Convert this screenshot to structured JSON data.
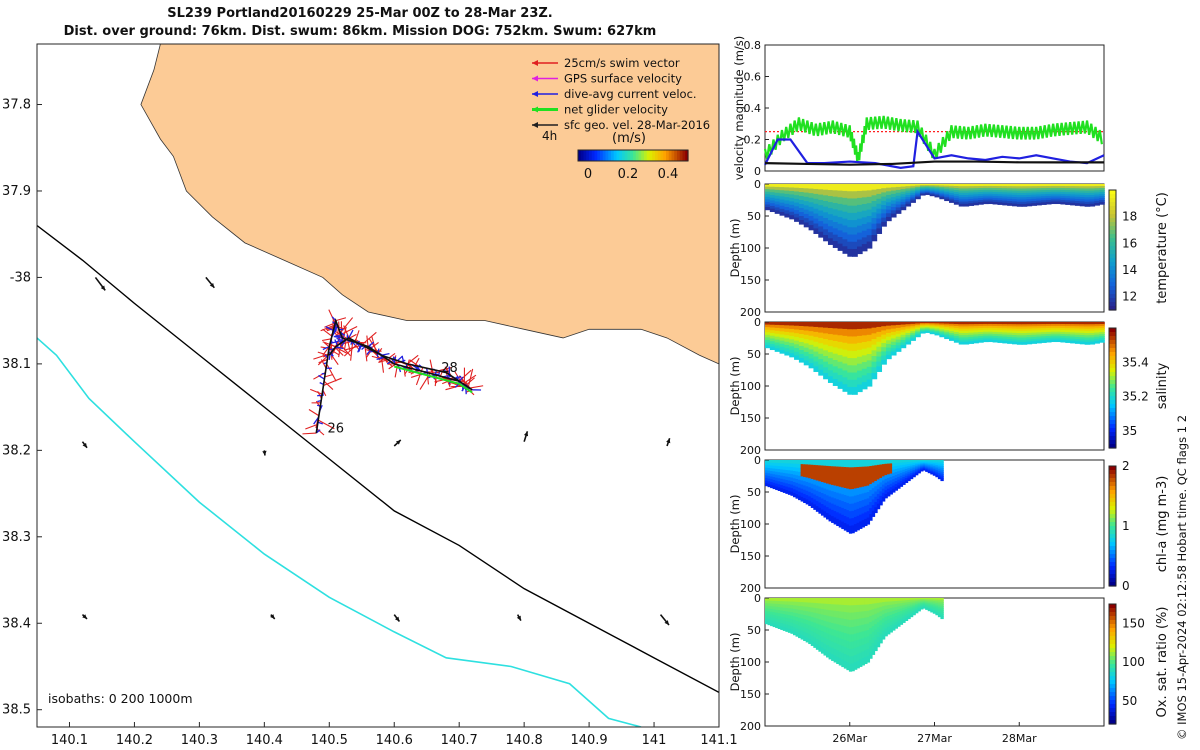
{
  "title": {
    "line1": "SL239 Portland20160229 25-Mar 00Z to 28-Mar 23Z.",
    "line2": "Dist. over ground: 76km. Dist. swum: 86km. Mission DOG: 752km. Swum: 627km"
  },
  "chart_data": [
    {
      "type": "scatter",
      "panel": "map",
      "xlim": [
        140.05,
        141.1
      ],
      "ylim": [
        -38.52,
        -37.73
      ],
      "x_ticks": [
        140.1,
        140.2,
        140.3,
        140.4,
        140.5,
        140.6,
        140.7,
        140.8,
        140.9,
        141,
        141.1
      ],
      "x_tick_labels": [
        "140.1",
        "140.2",
        "140.3",
        "140.4",
        "140.5",
        "140.6",
        "140.7",
        "140.8",
        "140.9",
        "141",
        "141.1"
      ],
      "y_ticks": [
        -37.8,
        -37.9,
        -38.0,
        -38.1,
        -38.2,
        -38.3,
        -38.4,
        -38.5
      ],
      "y_tick_labels": [
        "37.8",
        "37.9",
        "-38",
        "38.1",
        "38.2",
        "38.3",
        "38.4",
        "38.5"
      ],
      "land_color": "#fccb96",
      "coast_lon_lat": [
        [
          140.24,
          -37.73
        ],
        [
          140.23,
          -37.76
        ],
        [
          140.21,
          -37.8
        ],
        [
          140.24,
          -37.84
        ],
        [
          140.26,
          -37.86
        ],
        [
          140.28,
          -37.9
        ],
        [
          140.32,
          -37.93
        ],
        [
          140.37,
          -37.96
        ],
        [
          140.43,
          -37.98
        ],
        [
          140.49,
          -38.0
        ],
        [
          140.52,
          -38.02
        ],
        [
          140.56,
          -38.04
        ],
        [
          140.62,
          -38.05
        ],
        [
          140.68,
          -38.05
        ],
        [
          140.74,
          -38.05
        ],
        [
          140.8,
          -38.06
        ],
        [
          140.86,
          -38.07
        ],
        [
          140.9,
          -38.06
        ],
        [
          140.94,
          -38.06
        ],
        [
          140.98,
          -38.06
        ],
        [
          141.02,
          -38.07
        ],
        [
          141.07,
          -38.09
        ],
        [
          141.1,
          -38.1
        ],
        [
          141.1,
          -37.73
        ]
      ],
      "isobath_200m": [
        [
          140.05,
          -37.94
        ],
        [
          140.12,
          -37.98
        ],
        [
          140.2,
          -38.03
        ],
        [
          140.3,
          -38.09
        ],
        [
          140.4,
          -38.15
        ],
        [
          140.5,
          -38.21
        ],
        [
          140.6,
          -38.27
        ],
        [
          140.7,
          -38.31
        ],
        [
          140.8,
          -38.36
        ],
        [
          140.9,
          -38.4
        ],
        [
          141.0,
          -38.44
        ],
        [
          141.1,
          -38.48
        ]
      ],
      "isobath_1000m": [
        [
          140.05,
          -38.07
        ],
        [
          140.08,
          -38.09
        ],
        [
          140.13,
          -38.14
        ],
        [
          140.2,
          -38.19
        ],
        [
          140.3,
          -38.26
        ],
        [
          140.4,
          -38.32
        ],
        [
          140.5,
          -38.37
        ],
        [
          140.6,
          -38.41
        ],
        [
          140.68,
          -38.44
        ],
        [
          140.78,
          -38.45
        ],
        [
          140.87,
          -38.47
        ],
        [
          140.93,
          -38.51
        ],
        [
          140.98,
          -38.52
        ]
      ],
      "isobath_colors": {
        "200m": "#000000",
        "1000m": "#2ee0e0"
      },
      "glider_track": [
        [
          140.48,
          -38.18
        ],
        [
          140.49,
          -38.13
        ],
        [
          140.5,
          -38.08
        ],
        [
          140.51,
          -38.05
        ],
        [
          140.52,
          -38.07
        ],
        [
          140.56,
          -38.08
        ],
        [
          140.6,
          -38.1
        ],
        [
          140.65,
          -38.11
        ],
        [
          140.7,
          -38.12
        ],
        [
          140.72,
          -38.13
        ],
        [
          140.68,
          -38.11
        ],
        [
          140.62,
          -38.1
        ],
        [
          140.58,
          -38.09
        ],
        [
          140.53,
          -38.07
        ],
        [
          140.51,
          -38.08
        ],
        [
          140.5,
          -38.09
        ]
      ],
      "day_labels": [
        {
          "text": "26",
          "lon": 140.485,
          "lat": -38.175
        },
        {
          "text": "28",
          "lon": 140.66,
          "lat": -38.105
        }
      ],
      "surface_geo_vectors": [
        [
          140.14,
          -38.0,
          0.015,
          -0.015
        ],
        [
          140.31,
          -38.0,
          0.013,
          -0.012
        ],
        [
          140.12,
          -38.19,
          0.007,
          -0.007
        ],
        [
          140.4,
          -38.2,
          0.001,
          -0.006
        ],
        [
          140.6,
          -38.195,
          0.01,
          0.007
        ],
        [
          140.8,
          -38.19,
          0.005,
          0.012
        ],
        [
          141.02,
          -38.195,
          0.004,
          0.009
        ],
        [
          140.12,
          -38.39,
          0.007,
          -0.005
        ],
        [
          140.41,
          -38.39,
          0.006,
          -0.005
        ],
        [
          140.6,
          -38.39,
          0.008,
          -0.008
        ],
        [
          140.79,
          -38.39,
          0.005,
          -0.007
        ],
        [
          141.01,
          -38.39,
          0.013,
          -0.012
        ]
      ],
      "legend": [
        {
          "label": "25cm/s swim vector",
          "color": "#e02020"
        },
        {
          "label": "GPS surface velocity",
          "color": "#e020e0"
        },
        {
          "label": "dive-avg current veloc.",
          "color": "#2020e0"
        },
        {
          "label": "net glider velocity",
          "color": "#20e020"
        },
        {
          "label": "sfc geo. vel. 28-Mar-2016",
          "color": "#202020"
        }
      ],
      "scale_note": "4h",
      "colorbar": {
        "title": "(m/s)",
        "ticks": [
          0,
          0.2,
          0.4
        ],
        "tick_labels": [
          "0",
          "0.2",
          "0.4"
        ],
        "range": [
          -0.05,
          0.5
        ]
      },
      "isobath_note": "isobaths: 0   200  1000m"
    },
    {
      "type": "line",
      "panel": "velocity",
      "ylabel": "velocity magnitude (m/s)",
      "ylim": [
        0,
        0.8
      ],
      "y_ticks": [
        0,
        0.2,
        0.4,
        0.6,
        0.8
      ],
      "y_tick_labels": [
        "0",
        "0.2",
        "0.4",
        "0.6",
        "0.8"
      ],
      "x_range_days": [
        25.0,
        29.0
      ],
      "series": [
        {
          "color": "#20e020",
          "x": [
            25.0,
            25.2,
            25.4,
            25.6,
            25.8,
            26.0,
            26.1,
            26.2,
            26.4,
            26.6,
            26.8,
            27.0,
            27.2,
            27.4,
            27.6,
            27.8,
            28.0,
            28.2,
            28.4,
            28.6,
            28.8,
            29.0
          ],
          "values": [
            0.1,
            0.22,
            0.3,
            0.26,
            0.28,
            0.25,
            0.08,
            0.3,
            0.31,
            0.29,
            0.28,
            0.1,
            0.25,
            0.24,
            0.26,
            0.25,
            0.24,
            0.24,
            0.26,
            0.27,
            0.28,
            0.2
          ]
        },
        {
          "color": "#2020e0",
          "x": [
            25.0,
            25.15,
            25.3,
            25.5,
            25.7,
            26.0,
            26.3,
            26.6,
            26.75,
            26.8,
            27.0,
            27.2,
            27.4,
            27.6,
            27.8,
            28.0,
            28.2,
            28.4,
            28.6,
            28.8,
            29.0
          ],
          "values": [
            0.04,
            0.2,
            0.2,
            0.05,
            0.05,
            0.06,
            0.05,
            0.02,
            0.03,
            0.25,
            0.08,
            0.1,
            0.08,
            0.07,
            0.09,
            0.08,
            0.1,
            0.08,
            0.06,
            0.05,
            0.1
          ]
        },
        {
          "color": "#111111",
          "x": [
            25.0,
            25.5,
            26.0,
            26.5,
            27.0,
            27.5,
            28.0,
            28.5,
            29.0
          ],
          "values": [
            0.05,
            0.045,
            0.04,
            0.045,
            0.06,
            0.06,
            0.055,
            0.055,
            0.055
          ]
        }
      ],
      "reference_line": {
        "value": 0.25,
        "color": "#ff2020"
      }
    },
    {
      "type": "heatmap",
      "panel": "temperature",
      "ylabel": "Depth (m)",
      "colorbar_label": "temperature (°C)",
      "ylim": [
        200,
        0
      ],
      "y_ticks": [
        0,
        50,
        100,
        150,
        200
      ],
      "y_tick_labels": [
        "0",
        "50",
        "100",
        "150",
        "200"
      ],
      "colorbar_ticks": [
        12,
        14,
        16,
        18
      ],
      "colorbar_tick_labels": [
        "12",
        "14",
        "16",
        "18"
      ],
      "range": [
        11,
        20
      ],
      "bottom_profile": {
        "x_days": [
          25.0,
          25.3,
          25.5,
          25.75,
          26.0,
          26.2,
          26.4,
          26.55,
          26.7,
          26.85,
          27.0,
          27.3,
          27.6,
          28.0,
          28.4,
          28.8,
          29.0
        ],
        "depth": [
          40,
          55,
          70,
          95,
          115,
          100,
          60,
          45,
          30,
          15,
          20,
          35,
          30,
          35,
          30,
          35,
          30
        ]
      }
    },
    {
      "type": "heatmap",
      "panel": "salinity",
      "ylabel": "Depth (m)",
      "colorbar_label": "salinity",
      "ylim": [
        200,
        0
      ],
      "y_ticks": [
        0,
        50,
        100,
        150,
        200
      ],
      "y_tick_labels": [
        "0",
        "50",
        "100",
        "150",
        "200"
      ],
      "colorbar_ticks": [
        35,
        35.2,
        35.4
      ],
      "colorbar_tick_labels": [
        "35",
        "35.2",
        "35.4"
      ],
      "range": [
        34.9,
        35.6
      ],
      "bottom_profile": {
        "x_days": [
          25.0,
          25.3,
          25.5,
          25.75,
          26.0,
          26.2,
          26.4,
          26.55,
          26.7,
          26.85,
          27.0,
          27.3,
          27.6,
          28.0,
          28.4,
          28.8,
          29.0
        ],
        "depth": [
          40,
          55,
          70,
          95,
          115,
          100,
          60,
          45,
          30,
          15,
          20,
          35,
          30,
          35,
          30,
          35,
          30
        ]
      }
    },
    {
      "type": "heatmap",
      "panel": "chlorophyll",
      "ylabel": "Depth (m)",
      "colorbar_label": "chl-a (mg m-3)",
      "ylim": [
        200,
        0
      ],
      "y_ticks": [
        0,
        50,
        100,
        150,
        200
      ],
      "y_tick_labels": [
        "0",
        "50",
        "100",
        "150",
        "200"
      ],
      "colorbar_ticks": [
        0,
        1,
        2
      ],
      "colorbar_tick_labels": [
        "0",
        "1",
        "2"
      ],
      "range": [
        0,
        2
      ],
      "bottom_profile": {
        "x_days": [
          25.0,
          25.3,
          25.5,
          25.75,
          26.0,
          26.2,
          26.4,
          26.55,
          26.7,
          26.85,
          27.0,
          27.1
        ],
        "depth": [
          40,
          55,
          70,
          95,
          115,
          100,
          60,
          45,
          30,
          15,
          25,
          35
        ]
      }
    },
    {
      "type": "heatmap",
      "panel": "oxygen",
      "ylabel": "Depth (m)",
      "colorbar_label": "Ox. sat. ratio (%)",
      "ylim": [
        200,
        0
      ],
      "y_ticks": [
        0,
        50,
        100,
        150,
        200
      ],
      "y_tick_labels": [
        "0",
        "50",
        "100",
        "150",
        "200"
      ],
      "colorbar_ticks": [
        50,
        100,
        150
      ],
      "colorbar_tick_labels": [
        "50",
        "100",
        "150"
      ],
      "range": [
        20,
        175
      ],
      "bottom_profile": {
        "x_days": [
          25.0,
          25.3,
          25.5,
          25.75,
          26.0,
          26.2,
          26.4,
          26.55,
          26.7,
          26.85,
          27.0,
          27.1
        ],
        "depth": [
          40,
          55,
          70,
          95,
          115,
          100,
          60,
          45,
          30,
          15,
          25,
          35
        ]
      }
    }
  ],
  "time_axis": {
    "tick_days": [
      26,
      27,
      28
    ],
    "tick_labels": [
      "26Mar",
      "27Mar",
      "28Mar"
    ]
  },
  "credit": "© IMOS 15-Apr-2024 02:12:58 Hobart time. QC flags 1  2"
}
